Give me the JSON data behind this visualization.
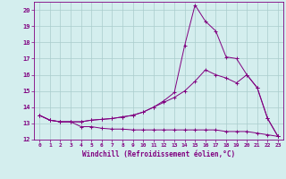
{
  "xlabel": "Windchill (Refroidissement éolien,°C)",
  "x": [
    0,
    1,
    2,
    3,
    4,
    5,
    6,
    7,
    8,
    9,
    10,
    11,
    12,
    13,
    14,
    15,
    16,
    17,
    18,
    19,
    20,
    21,
    22,
    23
  ],
  "line1": [
    13.5,
    13.2,
    13.1,
    13.1,
    12.8,
    12.8,
    12.7,
    12.65,
    12.65,
    12.6,
    12.6,
    12.6,
    12.6,
    12.6,
    12.6,
    12.6,
    12.6,
    12.6,
    12.5,
    12.5,
    12.5,
    12.4,
    12.3,
    12.2
  ],
  "line2": [
    13.5,
    13.2,
    13.1,
    13.1,
    13.1,
    13.2,
    13.25,
    13.3,
    13.4,
    13.5,
    13.7,
    14.0,
    14.3,
    14.6,
    15.0,
    15.6,
    16.3,
    16.0,
    15.8,
    15.5,
    16.0,
    15.2,
    13.3,
    12.2
  ],
  "line3": [
    13.5,
    13.2,
    13.1,
    13.1,
    13.1,
    13.2,
    13.25,
    13.3,
    13.4,
    13.5,
    13.7,
    14.0,
    14.4,
    14.9,
    17.8,
    20.3,
    19.3,
    18.7,
    17.1,
    17.0,
    16.0,
    15.2,
    13.3,
    12.2
  ],
  "line_color": "#800080",
  "bg_color": "#d4eeee",
  "grid_color": "#aacccc",
  "ylim": [
    12,
    20.5
  ],
  "xlim": [
    -0.5,
    23.5
  ],
  "yticks": [
    12,
    13,
    14,
    15,
    16,
    17,
    18,
    19,
    20
  ],
  "xticks": [
    0,
    1,
    2,
    3,
    4,
    5,
    6,
    7,
    8,
    9,
    10,
    11,
    12,
    13,
    14,
    15,
    16,
    17,
    18,
    19,
    20,
    21,
    22,
    23
  ]
}
